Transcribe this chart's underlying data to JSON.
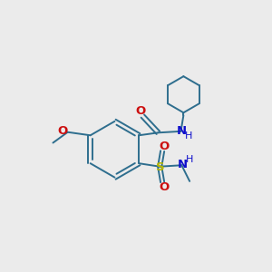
{
  "background_color": "#ebebeb",
  "bond_color": "#2e6e8e",
  "nitrogen_color": "#1010cc",
  "oxygen_color": "#cc1010",
  "sulfur_color": "#b8b800",
  "figsize": [
    3.0,
    3.0
  ],
  "dpi": 100,
  "xlim": [
    0,
    10
  ],
  "ylim": [
    0,
    10
  ]
}
